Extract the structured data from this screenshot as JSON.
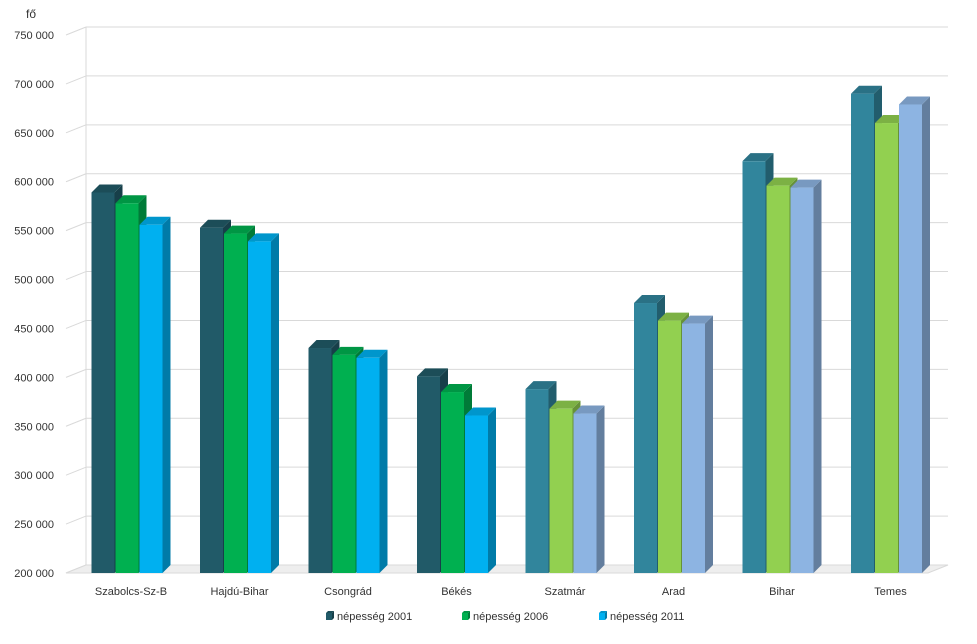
{
  "chart_data": {
    "type": "bar",
    "ylabel": "fő",
    "ylim": [
      200000,
      750000
    ],
    "yticks": [
      200000,
      250000,
      300000,
      350000,
      400000,
      450000,
      500000,
      550000,
      600000,
      650000,
      700000,
      750000
    ],
    "ytick_labels": [
      "200 000",
      "250 000",
      "300 000",
      "350 000",
      "400 000",
      "450 000",
      "500 000",
      "550 000",
      "600 000",
      "650 000",
      "700 000",
      "750 000"
    ],
    "grid": true,
    "legend_position": "bottom",
    "categories": [
      "Szabolcs-Sz-B",
      "Hajdú-Bihar",
      "Csongrád",
      "Békés",
      "Szatmár",
      "Arad",
      "Bihar",
      "Temes"
    ],
    "series": [
      {
        "name": "népesség 2001",
        "values": [
          589000,
          553000,
          430000,
          401000,
          388000,
          476000,
          621000,
          690000
        ]
      },
      {
        "name": "népesség 2006",
        "values": [
          578000,
          547000,
          423000,
          385000,
          368000,
          458000,
          596000,
          660000
        ]
      },
      {
        "name": "népesség 2011",
        "values": [
          556000,
          539000,
          420000,
          361000,
          363000,
          455000,
          594000,
          679000
        ]
      }
    ],
    "colors": {
      "hungary": [
        "#215a68",
        "#00b050",
        "#00b0f0"
      ],
      "romania": [
        "#31859c",
        "#92d050",
        "#8db4e2"
      ],
      "legend": [
        "#215a68",
        "#00b050",
        "#00b0f0"
      ],
      "grid": "#d9d9d9",
      "floor": "#d9d9d9"
    },
    "romania_start_index": 4
  }
}
